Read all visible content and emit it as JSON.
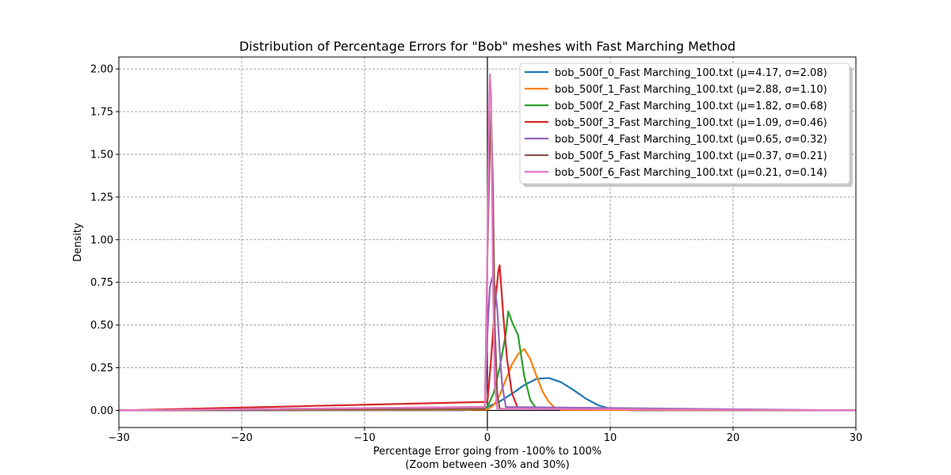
{
  "chart_data": {
    "type": "line",
    "title": "Distribution of Percentage Errors for \"Bob\" meshes with Fast Marching Method",
    "xlabel_line1": "Percentage Error going from -100% to 100%",
    "xlabel_line2": "(Zoom between -30% and 30%)",
    "ylabel": "Density",
    "xlim": [
      -30,
      30
    ],
    "ylim": [
      -0.1,
      2.07
    ],
    "xticks": [
      -30,
      -20,
      -10,
      0,
      10,
      20,
      30
    ],
    "xtick_labels": [
      "−30",
      "−20",
      "−10",
      "0",
      "10",
      "20",
      "30"
    ],
    "yticks": [
      0.0,
      0.25,
      0.5,
      0.75,
      1.0,
      1.25,
      1.5,
      1.75,
      2.0
    ],
    "ytick_labels": [
      "0.00",
      "0.25",
      "0.50",
      "0.75",
      "1.00",
      "1.25",
      "1.50",
      "1.75",
      "2.00"
    ],
    "grid": true,
    "legend_position": "top-right",
    "reference_lines": {
      "vertical_x": 0,
      "horizontal_y": 0
    },
    "series": [
      {
        "name": "bob_500f_0_Fast Marching_100.txt (μ=4.17, σ=2.08)",
        "color": "#1f77b4",
        "x": [
          -30,
          -2,
          -1,
          0,
          1,
          2,
          3,
          4,
          5,
          6,
          7,
          8,
          9,
          10,
          11,
          12,
          30
        ],
        "y": [
          0,
          0.001,
          0.005,
          0.02,
          0.052,
          0.098,
          0.148,
          0.185,
          0.19,
          0.165,
          0.12,
          0.07,
          0.031,
          0.01,
          0.003,
          0.001,
          0
        ]
      },
      {
        "name": "bob_500f_1_Fast Marching_100.txt (μ=2.88, σ=1.10)",
        "color": "#ff7f0e",
        "x": [
          -30,
          0,
          0.5,
          1,
          1.5,
          2,
          2.5,
          3,
          3.5,
          4,
          4.5,
          5,
          5.5,
          6,
          30
        ],
        "y": [
          0,
          0.005,
          0.03,
          0.09,
          0.18,
          0.27,
          0.33,
          0.36,
          0.3,
          0.2,
          0.11,
          0.05,
          0.015,
          0.003,
          0
        ]
      },
      {
        "name": "bob_500f_2_Fast Marching_100.txt (μ=1.82, σ=0.68)",
        "color": "#2ca02c",
        "x": [
          -30,
          0,
          0.5,
          1,
          1.5,
          1.7,
          2,
          2.5,
          3,
          3.5,
          4,
          30
        ],
        "y": [
          0,
          0.02,
          0.1,
          0.25,
          0.45,
          0.58,
          0.52,
          0.44,
          0.2,
          0.06,
          0.01,
          0
        ]
      },
      {
        "name": "bob_500f_3_Fast Marching_100.txt (μ=1.09, σ=0.46)",
        "color": "#d62728",
        "x": [
          -30,
          0,
          0.3,
          0.6,
          0.9,
          1.0,
          1.3,
          1.6,
          2.0,
          2.5,
          30
        ],
        "y": [
          0,
          0.05,
          0.3,
          0.6,
          0.82,
          0.85,
          0.55,
          0.3,
          0.1,
          0.01,
          0
        ]
      },
      {
        "name": "bob_500f_4_Fast Marching_100.txt (μ=0.65, σ=0.32)",
        "color": "#9467bd",
        "x": [
          -30,
          -0.2,
          0,
          0.2,
          0.4,
          0.6,
          0.8,
          1.0,
          1.2,
          1.5,
          30
        ],
        "y": [
          0,
          0.01,
          0.45,
          0.72,
          0.78,
          0.73,
          0.6,
          0.35,
          0.15,
          0.02,
          0
        ]
      },
      {
        "name": "bob_500f_5_Fast Marching_100.txt (μ=0.37, σ=0.21)",
        "color": "#8c564b",
        "x": [
          -30,
          -0.2,
          0,
          0.15,
          0.3,
          0.45,
          0.6,
          0.8,
          1.0,
          30
        ],
        "y": [
          0,
          0.01,
          0.9,
          1.4,
          1.75,
          1.3,
          0.5,
          0.1,
          0.01,
          0
        ]
      },
      {
        "name": "bob_500f_6_Fast Marching_100.txt (μ=0.21, σ=0.14)",
        "color": "#e377c2",
        "x": [
          -30,
          -0.2,
          -0.05,
          0.1,
          0.2,
          0.3,
          0.45,
          0.6,
          0.8,
          30
        ],
        "y": [
          0,
          0.02,
          0.6,
          1.6,
          1.97,
          1.85,
          0.8,
          0.15,
          0.01,
          0
        ]
      }
    ]
  }
}
